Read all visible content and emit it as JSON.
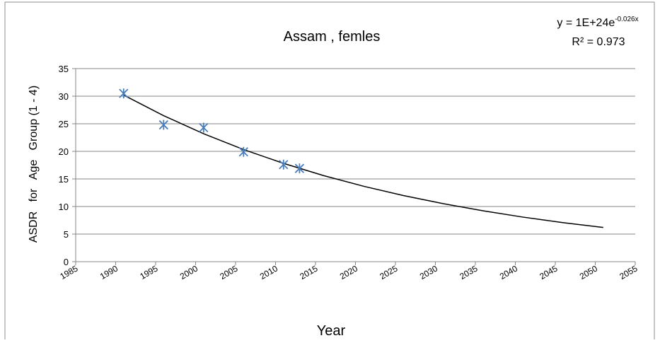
{
  "chart_data": {
    "type": "scatter",
    "title": "Assam , femles",
    "x_label": "Year",
    "y_label": "ASDR   for   Age   Group (1 - 4)",
    "series": [
      {
        "name": "ASDR",
        "color": "#4a7ebb",
        "x": [
          1991,
          1996,
          2001,
          2006,
          2011,
          2013
        ],
        "values": [
          30.5,
          24.8,
          24.3,
          19.9,
          17.6,
          16.9
        ]
      }
    ],
    "trendline": {
      "color": "#000000",
      "x": [
        1991,
        1996,
        2001,
        2006,
        2011,
        2016,
        2021,
        2026,
        2031,
        2036,
        2041,
        2046,
        2051
      ],
      "values": [
        30.2,
        26.47,
        23.2,
        20.33,
        17.82,
        15.61,
        13.68,
        11.99,
        10.51,
        9.21,
        8.07,
        7.07,
        6.2
      ],
      "equation": {
        "base": "y = 1E+24e",
        "exponent": "-0.026x"
      },
      "r_squared": "R² = 0.973"
    },
    "xlim": [
      1985,
      2055
    ],
    "xticks": [
      1985,
      1990,
      1995,
      2000,
      2005,
      2010,
      2015,
      2020,
      2025,
      2030,
      2035,
      2040,
      2045,
      2050,
      2055
    ],
    "ylim": [
      0,
      35
    ],
    "yticks": [
      0,
      5,
      10,
      15,
      20,
      25,
      30,
      35
    ],
    "grid": true
  }
}
